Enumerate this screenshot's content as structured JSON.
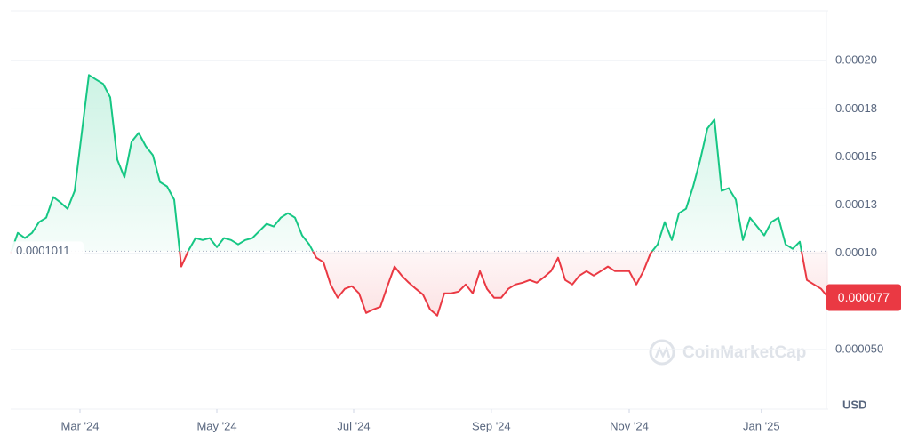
{
  "chart_data": {
    "type": "line",
    "series": [
      {
        "name": "Price",
        "color_up": "#16c784",
        "color_down": "#ea3943",
        "values": [
          0.0001,
          0.0001106,
          0.0001079,
          0.0001106,
          0.0001162,
          0.0001185,
          0.0001292,
          0.0001264,
          0.0001231,
          0.0001324,
          0.0001625,
          0.0001926,
          0.0001903,
          0.000188,
          0.000181,
          0.0001486,
          0.0001394,
          0.0001579,
          0.0001625,
          0.0001556,
          0.0001509,
          0.000137,
          0.0001347,
          0.0001278,
          9.31e-05,
          0.0001014,
          0.0001079,
          0.0001069,
          0.0001079,
          0.0001032,
          0.0001079,
          0.0001069,
          0.0001046,
          0.0001069,
          0.0001079,
          0.0001116,
          0.0001153,
          0.0001139,
          0.0001185,
          0.0001208,
          0.0001185,
          0.0001093,
          0.0001046,
          9.77e-05,
          9.54e-05,
          8.38e-05,
          7.69e-05,
          8.15e-05,
          8.29e-05,
          7.92e-05,
          6.9e-05,
          7.08e-05,
          7.22e-05,
          8.29e-05,
          9.31e-05,
          8.84e-05,
          8.47e-05,
          8.15e-05,
          7.85e-05,
          7.08e-05,
          6.76e-05,
          7.92e-05,
          7.92e-05,
          8.01e-05,
          8.38e-05,
          7.92e-05,
          9.07e-05,
          8.15e-05,
          7.69e-05,
          7.69e-05,
          8.15e-05,
          8.38e-05,
          8.47e-05,
          8.61e-05,
          8.47e-05,
          8.75e-05,
          9.07e-05,
          9.77e-05,
          8.61e-05,
          8.38e-05,
          8.84e-05,
          9.07e-05,
          8.84e-05,
          9.07e-05,
          9.31e-05,
          9.07e-05,
          9.07e-05,
          9.07e-05,
          8.38e-05,
          9.07e-05,
          0.0001,
          0.0001046,
          0.0001162,
          0.0001069,
          0.0001208,
          0.0001231,
          0.0001347,
          0.0001486,
          0.0001648,
          0.0001695,
          0.0001324,
          0.0001338,
          0.0001278,
          0.0001069,
          0.0001185,
          0.0001139,
          0.0001093,
          0.0001162,
          0.0001185,
          0.0001046,
          0.0001023,
          0.000106,
          8.61e-05,
          8.38e-05,
          8.15e-05,
          7.7e-05
        ]
      }
    ],
    "baseline": 0.0001011,
    "current": 7.7e-05,
    "xlim": [
      0,
      115
    ],
    "xticks": [
      {
        "value": 9.75,
        "label": "Mar '24"
      },
      {
        "value": 29,
        "label": "May '24"
      },
      {
        "value": 48.25,
        "label": "Jul '24"
      },
      {
        "value": 67.6,
        "label": "Sep '24"
      },
      {
        "value": 87,
        "label": "Nov '24"
      },
      {
        "value": 105.6,
        "label": "Jan '25"
      }
    ],
    "ylim": [
      1.9e-05,
      0.000226
    ],
    "yticks": [
      {
        "value": 5e-05,
        "label": "0.000050"
      },
      {
        "value": 0.0001,
        "label": "0.00010"
      },
      {
        "value": 0.000125,
        "label": "0.00013"
      },
      0.00015,
      {
        "value": 0.000175,
        "label": "0.00018"
      },
      {
        "value": 0.0002,
        "label": "0.00020"
      }
    ],
    "y_unit": "USD",
    "watermark": "CoinMarketCap",
    "grid": true
  }
}
